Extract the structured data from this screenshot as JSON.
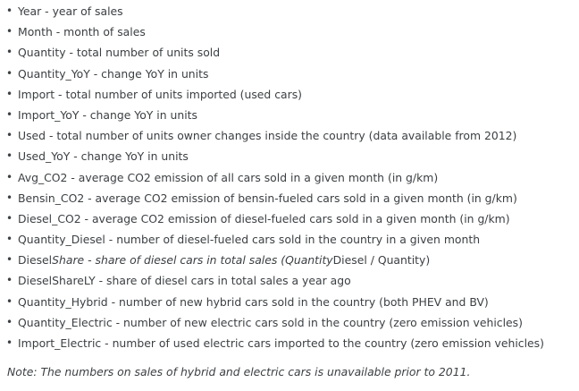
{
  "items": [
    "Year - year of sales",
    "Month - month of sales",
    "Quantity - total number of units sold",
    "Quantity_YoY - change YoY in units",
    "Import - total number of units imported (used cars)",
    "Import_YoY - change YoY in units",
    "Used - total number of units owner changes inside the country (data available from 2012)",
    "Used_YoY - change YoY in units",
    "Avg_CO2 - average CO2 emission of all cars sold in a given month (in g/km)",
    "Bensin_CO2 - average CO2 emission of bensin-fueled cars sold in a given month (in g/km)",
    "Diesel_CO2 - average CO2 emission of diesel-fueled cars sold in a given month (in g/km)",
    "Quantity_Diesel - number of diesel-fueled cars sold in the country in a given month"
  ],
  "diesel_share": {
    "prefix": "Diesel",
    "italic": "Share - share of diesel cars in total sales (Quantity",
    "suffix": "Diesel / Quantity)"
  },
  "items_after": [
    "DieselShareLY - share of diesel cars in total sales a year ago",
    "Quantity_Hybrid - number of new hybrid cars sold in the country (both PHEV and BV)",
    "Quantity_Electric - number of new electric cars sold in the country (zero emission vehicles)",
    "Import_Electric - number of used electric cars imported to the country (zero emission vehicles)"
  ],
  "note": "Note: The numbers on sales of hybrid and electric cars is unavailable prior to 2011."
}
